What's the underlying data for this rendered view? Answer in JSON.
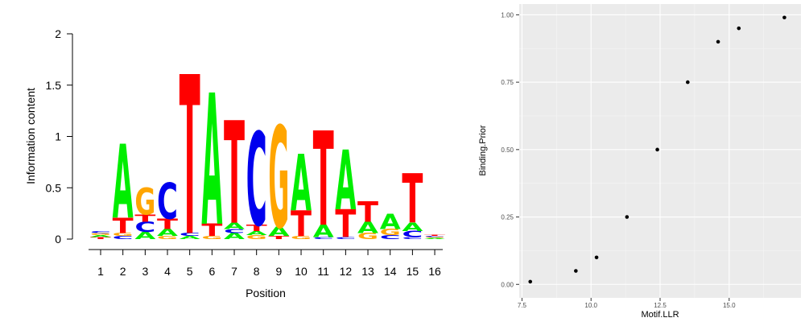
{
  "chart_data": [
    {
      "type": "sequence-logo",
      "ylabel": "Information content",
      "xlabel": "Position",
      "ylim": [
        0,
        2
      ],
      "y_ticks": [
        "0",
        "0.5",
        "1",
        "1.5",
        "2"
      ],
      "positions": [
        "1",
        "2",
        "3",
        "4",
        "5",
        "6",
        "7",
        "8",
        "9",
        "10",
        "11",
        "12",
        "13",
        "14",
        "15",
        "16"
      ],
      "letter_colors": {
        "A": "#00ee00",
        "C": "#0000ee",
        "G": "#ffa500",
        "T": "#ff0000"
      },
      "stacks": [
        [
          {
            "l": "T",
            "h": 0.02
          },
          {
            "l": "A",
            "h": 0.02
          },
          {
            "l": "G",
            "h": 0.02
          },
          {
            "l": "C",
            "h": 0.02
          }
        ],
        [
          {
            "l": "C",
            "h": 0.03
          },
          {
            "l": "G",
            "h": 0.03
          },
          {
            "l": "T",
            "h": 0.15
          },
          {
            "l": "A",
            "h": 0.72
          }
        ],
        [
          {
            "l": "A",
            "h": 0.07
          },
          {
            "l": "C",
            "h": 0.1
          },
          {
            "l": "T",
            "h": 0.07
          },
          {
            "l": "G",
            "h": 0.26
          }
        ],
        [
          {
            "l": "G",
            "h": 0.03
          },
          {
            "l": "A",
            "h": 0.07
          },
          {
            "l": "T",
            "h": 0.1
          },
          {
            "l": "C",
            "h": 0.35
          }
        ],
        [
          {
            "l": "A",
            "h": 0.03
          },
          {
            "l": "C",
            "h": 0.03
          },
          {
            "l": "T",
            "h": 1.55
          }
        ],
        [
          {
            "l": "G",
            "h": 0.03
          },
          {
            "l": "T",
            "h": 0.12
          },
          {
            "l": "A",
            "h": 1.28
          }
        ],
        [
          {
            "l": "A",
            "h": 0.06
          },
          {
            "l": "C",
            "h": 0.04
          },
          {
            "l": "A",
            "h": 0.06
          },
          {
            "l": "T",
            "h": 1.0
          }
        ],
        [
          {
            "l": "G",
            "h": 0.04
          },
          {
            "l": "A",
            "h": 0.04
          },
          {
            "l": "T",
            "h": 0.06
          },
          {
            "l": "C",
            "h": 0.91
          }
        ],
        [
          {
            "l": "T",
            "h": 0.03
          },
          {
            "l": "A",
            "h": 0.09
          },
          {
            "l": "G",
            "h": 0.99
          }
        ],
        [
          {
            "l": "G",
            "h": 0.03
          },
          {
            "l": "T",
            "h": 0.25
          },
          {
            "l": "A",
            "h": 0.55
          }
        ],
        [
          {
            "l": "C",
            "h": 0.02
          },
          {
            "l": "A",
            "h": 0.12
          },
          {
            "l": "T",
            "h": 0.92
          }
        ],
        [
          {
            "l": "C",
            "h": 0.02
          },
          {
            "l": "T",
            "h": 0.27
          },
          {
            "l": "A",
            "h": 0.58
          }
        ],
        [
          {
            "l": "G",
            "h": 0.06
          },
          {
            "l": "A",
            "h": 0.11
          },
          {
            "l": "T",
            "h": 0.2
          }
        ],
        [
          {
            "l": "C",
            "h": 0.04
          },
          {
            "l": "G",
            "h": 0.06
          },
          {
            "l": "A",
            "h": 0.15
          }
        ],
        [
          {
            "l": "C",
            "h": 0.02
          },
          {
            "l": "C",
            "h": 0.06
          },
          {
            "l": "A",
            "h": 0.08
          },
          {
            "l": "T",
            "h": 0.48
          }
        ],
        [
          {
            "l": "A",
            "h": 0.01
          },
          {
            "l": "G",
            "h": 0.01
          },
          {
            "l": "C",
            "h": 0.01
          },
          {
            "l": "T",
            "h": 0.01
          }
        ]
      ]
    },
    {
      "type": "scatter",
      "xlabel": "Motif.LLR",
      "ylabel": "Binding.Prior",
      "xlim": [
        7.4,
        17.6
      ],
      "ylim": [
        -0.05,
        1.04
      ],
      "x_ticks": [
        7.5,
        10.0,
        12.5,
        15.0
      ],
      "x_tick_labels": [
        "7.5",
        "10.0",
        "12.5",
        "15.0"
      ],
      "y_ticks": [
        0.0,
        0.25,
        0.5,
        0.75,
        1.0
      ],
      "y_tick_labels": [
        "0.00",
        "0.25",
        "0.50",
        "0.75",
        "1.00"
      ],
      "grid": true,
      "panel_color": "#ebebeb",
      "point_color": "#000000",
      "x": [
        7.8,
        9.45,
        10.2,
        11.3,
        12.4,
        13.5,
        14.6,
        15.35,
        17.0
      ],
      "y": [
        0.01,
        0.05,
        0.1,
        0.25,
        0.5,
        0.75,
        0.9,
        0.95,
        0.99
      ]
    }
  ]
}
